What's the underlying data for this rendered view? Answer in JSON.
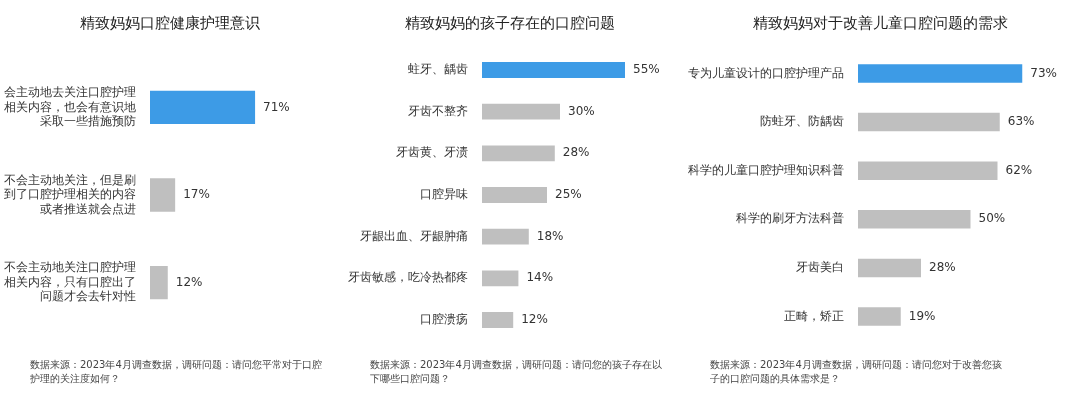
{
  "chart_data": [
    {
      "type": "bar",
      "orientation": "horizontal",
      "title": "精致妈妈口腔健康护理意识",
      "categories": [
        "会主动地去关注口腔护理相关内容，也会有意识地采取一些措施预防",
        "不会主动地关注，但是刷到了口腔护理相关的内容或者推送就会点进",
        "不会主动地关注口腔护理相关内容，只有口腔出了问题才会去针对性"
      ],
      "values": [
        71,
        17,
        12
      ],
      "value_labels": [
        "71%",
        "17%",
        "12%"
      ],
      "colors": [
        "#3d9be6",
        "#bfbfbf",
        "#bfbfbf"
      ],
      "tick_labels": "y",
      "annotations": [
        "数据来源：2023年4月调查数据，调研问题：请问您平常对于口腔护理的关注度如何？"
      ]
    },
    {
      "type": "bar",
      "orientation": "horizontal",
      "title": "精致妈妈的孩子存在的口腔问题",
      "categories": [
        "蛀牙、龋齿",
        "牙齿不整齐",
        "牙齿黄、牙渍",
        "口腔异味",
        "牙龈出血、牙龈肿痛",
        "牙齿敏感，吃冷热都疼",
        "口腔溃疡"
      ],
      "values": [
        55,
        30,
        28,
        25,
        18,
        14,
        12
      ],
      "value_labels": [
        "55%",
        "30%",
        "28%",
        "25%",
        "18%",
        "14%",
        "12%"
      ],
      "colors": [
        "#3d9be6",
        "#bfbfbf",
        "#bfbfbf",
        "#bfbfbf",
        "#bfbfbf",
        "#bfbfbf",
        "#bfbfbf"
      ],
      "tick_labels": "y",
      "annotations": [
        "数据来源：2023年4月调查数据，调研问题：请问您的孩子存在以下哪些口腔问题？"
      ]
    },
    {
      "type": "bar",
      "orientation": "horizontal",
      "title": "精致妈妈对于改善儿童口腔问题的需求",
      "categories": [
        "专为儿童设计的口腔护理产品",
        "防蛀牙、防龋齿",
        "科学的儿童口腔护理知识科普",
        "科学的刷牙方法科普",
        "牙齿美白",
        "正畸，矫正"
      ],
      "values": [
        73,
        63,
        62,
        50,
        28,
        19
      ],
      "value_labels": [
        "73%",
        "63%",
        "62%",
        "50%",
        "28%",
        "19%"
      ],
      "colors": [
        "#3d9be6",
        "#bfbfbf",
        "#bfbfbf",
        "#bfbfbf",
        "#bfbfbf",
        "#bfbfbf"
      ],
      "tick_labels": "y",
      "annotations": [
        "数据来源：2023年4月调查数据，调研问题：请问您对于改善您孩子的口腔问题的具体需求是？"
      ]
    }
  ]
}
